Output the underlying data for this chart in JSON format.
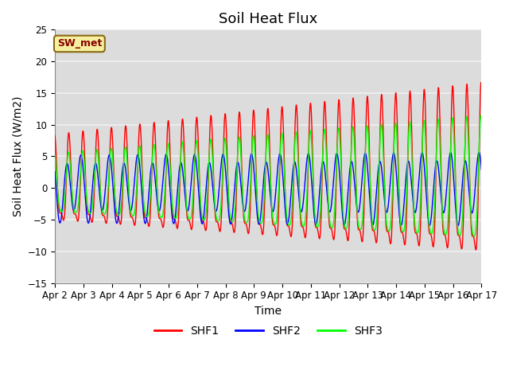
{
  "title": "Soil Heat Flux",
  "xlabel": "Time",
  "ylabel": "Soil Heat Flux (W/m2)",
  "ylim": [
    -15,
    25
  ],
  "yticks": [
    -15,
    -10,
    -5,
    0,
    5,
    10,
    15,
    20,
    25
  ],
  "bg_color": "#dcdcdc",
  "grid_color": "#f0f0f0",
  "annotation_text": "SW_met",
  "annotation_bg": "#f5f0a0",
  "annotation_border": "#8b6914",
  "annotation_text_color": "#8b0000",
  "legend_entries": [
    "SHF1",
    "SHF2",
    "SHF3"
  ],
  "line_colors": [
    "red",
    "blue",
    "lime"
  ],
  "n_points": 1500,
  "title_fontsize": 13,
  "label_fontsize": 10,
  "tick_fontsize": 8.5
}
